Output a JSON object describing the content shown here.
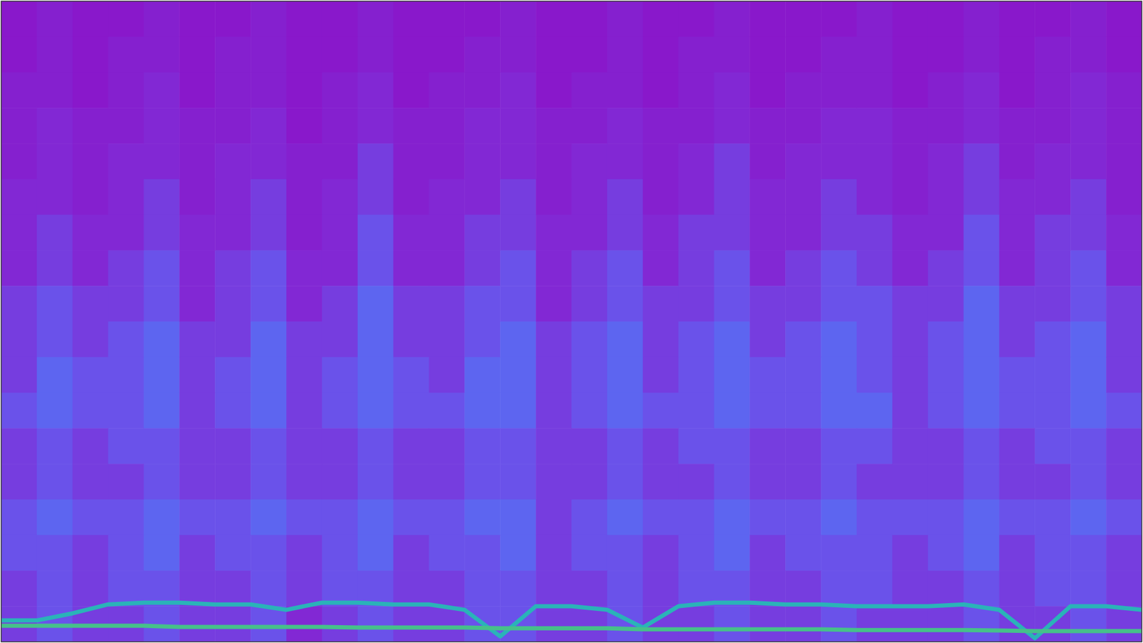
{
  "chart_data": {
    "type": "heatmap",
    "xlim": [
      0,
      32
    ],
    "ylim": [
      0,
      18
    ],
    "tick_labels": false,
    "color_range": [
      0,
      10
    ],
    "cells": [
      [
        1,
        2,
        1,
        1,
        2,
        1,
        1,
        2,
        1,
        1,
        2,
        1,
        1,
        1,
        2,
        1,
        1,
        2,
        1,
        1,
        2,
        1,
        1,
        1,
        2,
        1,
        1,
        2,
        1,
        1,
        2,
        1
      ],
      [
        1,
        2,
        1,
        2,
        2,
        1,
        2,
        2,
        1,
        1,
        2,
        1,
        1,
        2,
        2,
        1,
        1,
        2,
        1,
        2,
        2,
        1,
        1,
        2,
        2,
        1,
        1,
        2,
        1,
        2,
        2,
        1
      ],
      [
        2,
        2,
        1,
        2,
        3,
        1,
        2,
        2,
        1,
        2,
        3,
        1,
        2,
        2,
        3,
        1,
        2,
        2,
        1,
        2,
        3,
        1,
        2,
        2,
        2,
        1,
        2,
        3,
        1,
        2,
        3,
        2
      ],
      [
        2,
        3,
        2,
        2,
        3,
        2,
        2,
        3,
        1,
        2,
        3,
        2,
        2,
        3,
        3,
        2,
        2,
        3,
        2,
        2,
        3,
        2,
        2,
        3,
        3,
        2,
        2,
        3,
        2,
        2,
        3,
        2
      ],
      [
        2,
        3,
        2,
        3,
        3,
        2,
        3,
        3,
        2,
        2,
        4,
        2,
        2,
        3,
        3,
        2,
        3,
        3,
        2,
        3,
        4,
        2,
        3,
        3,
        3,
        2,
        3,
        4,
        2,
        3,
        3,
        2
      ],
      [
        3,
        3,
        2,
        3,
        4,
        2,
        3,
        4,
        2,
        3,
        4,
        2,
        3,
        3,
        4,
        2,
        3,
        4,
        2,
        3,
        4,
        3,
        3,
        4,
        3,
        2,
        3,
        4,
        3,
        3,
        4,
        2
      ],
      [
        3,
        4,
        3,
        3,
        4,
        3,
        3,
        4,
        2,
        3,
        5,
        3,
        3,
        4,
        4,
        3,
        3,
        4,
        3,
        4,
        4,
        3,
        3,
        4,
        4,
        3,
        3,
        5,
        3,
        4,
        4,
        3
      ],
      [
        3,
        4,
        3,
        4,
        5,
        3,
        4,
        5,
        3,
        3,
        5,
        3,
        3,
        4,
        5,
        3,
        4,
        5,
        3,
        4,
        5,
        3,
        4,
        5,
        4,
        3,
        4,
        5,
        3,
        4,
        5,
        3
      ],
      [
        4,
        5,
        4,
        4,
        5,
        3,
        4,
        5,
        3,
        4,
        6,
        4,
        4,
        5,
        5,
        3,
        4,
        5,
        4,
        4,
        5,
        4,
        4,
        5,
        5,
        4,
        4,
        6,
        4,
        4,
        5,
        4
      ],
      [
        4,
        5,
        4,
        5,
        6,
        4,
        4,
        6,
        4,
        4,
        6,
        4,
        4,
        5,
        6,
        4,
        5,
        6,
        4,
        5,
        6,
        4,
        5,
        6,
        5,
        4,
        5,
        6,
        4,
        5,
        6,
        4
      ],
      [
        4,
        6,
        5,
        5,
        6,
        4,
        5,
        6,
        4,
        5,
        6,
        5,
        4,
        6,
        6,
        4,
        5,
        6,
        4,
        5,
        6,
        5,
        5,
        6,
        5,
        4,
        5,
        6,
        5,
        5,
        6,
        4
      ],
      [
        5,
        6,
        5,
        5,
        6,
        4,
        5,
        6,
        4,
        5,
        6,
        5,
        5,
        6,
        6,
        4,
        5,
        6,
        5,
        5,
        6,
        5,
        5,
        6,
        6,
        4,
        5,
        6,
        5,
        5,
        6,
        5
      ],
      [
        4,
        5,
        4,
        5,
        5,
        4,
        4,
        5,
        4,
        4,
        5,
        4,
        4,
        5,
        5,
        4,
        4,
        5,
        4,
        5,
        5,
        4,
        4,
        5,
        5,
        4,
        4,
        5,
        4,
        5,
        5,
        4
      ],
      [
        4,
        5,
        4,
        4,
        5,
        4,
        4,
        5,
        4,
        4,
        5,
        4,
        4,
        5,
        5,
        4,
        4,
        5,
        4,
        4,
        5,
        4,
        4,
        5,
        4,
        4,
        4,
        5,
        4,
        4,
        5,
        4
      ],
      [
        5,
        6,
        5,
        5,
        6,
        5,
        5,
        6,
        5,
        5,
        6,
        5,
        5,
        6,
        6,
        4,
        5,
        6,
        5,
        5,
        6,
        5,
        5,
        6,
        5,
        5,
        5,
        6,
        5,
        5,
        6,
        5
      ],
      [
        5,
        5,
        4,
        5,
        6,
        4,
        5,
        5,
        4,
        5,
        6,
        4,
        5,
        5,
        6,
        4,
        5,
        5,
        4,
        5,
        6,
        4,
        5,
        5,
        5,
        4,
        5,
        6,
        4,
        5,
        5,
        4
      ],
      [
        4,
        5,
        4,
        5,
        5,
        4,
        4,
        5,
        4,
        5,
        5,
        4,
        4,
        5,
        5,
        4,
        4,
        5,
        4,
        5,
        5,
        4,
        4,
        5,
        5,
        4,
        4,
        5,
        4,
        5,
        5,
        4
      ],
      [
        4,
        5,
        4,
        4,
        5,
        4,
        4,
        5,
        3,
        4,
        5,
        4,
        4,
        5,
        5,
        4,
        4,
        5,
        4,
        4,
        5,
        4,
        4,
        5,
        4,
        4,
        4,
        5,
        4,
        4,
        5,
        4
      ]
    ],
    "x": [
      0,
      1,
      2,
      3,
      4,
      5,
      6,
      7,
      8,
      9,
      10,
      11,
      12,
      13,
      14,
      15,
      16,
      17,
      18,
      19,
      20,
      21,
      22,
      23,
      24,
      25,
      26,
      27,
      28,
      29,
      30,
      31,
      32
    ],
    "series": [
      {
        "type": "line",
        "color": "#2ab3b8",
        "values": [
          0.6,
          0.6,
          0.8,
          1.05,
          1.1,
          1.1,
          1.05,
          1.05,
          0.9,
          1.1,
          1.1,
          1.05,
          1.05,
          0.9,
          0.15,
          1.0,
          1.0,
          0.9,
          0.4,
          1.0,
          1.1,
          1.1,
          1.05,
          1.05,
          1.0,
          1.0,
          1.0,
          1.05,
          0.9,
          0.1,
          1.0,
          1.0,
          0.9
        ]
      },
      {
        "type": "line",
        "color": "#46c08a",
        "values": [
          0.45,
          0.45,
          0.45,
          0.45,
          0.45,
          0.42,
          0.42,
          0.42,
          0.42,
          0.42,
          0.4,
          0.4,
          0.4,
          0.4,
          0.38,
          0.38,
          0.38,
          0.38,
          0.35,
          0.35,
          0.35,
          0.35,
          0.35,
          0.35,
          0.33,
          0.33,
          0.33,
          0.33,
          0.32,
          0.3,
          0.3,
          0.3,
          0.3
        ]
      }
    ]
  }
}
